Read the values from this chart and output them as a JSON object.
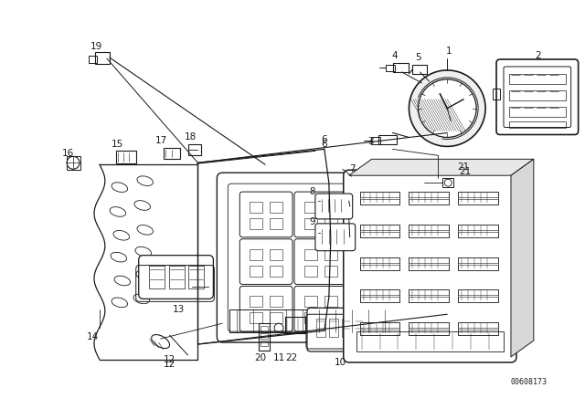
{
  "background_color": "#ffffff",
  "diagram_color": "#1a1a1a",
  "part_number_text": "00608173",
  "label_fontsize": 7.5,
  "fig_w": 6.4,
  "fig_h": 4.48,
  "dpi": 100
}
